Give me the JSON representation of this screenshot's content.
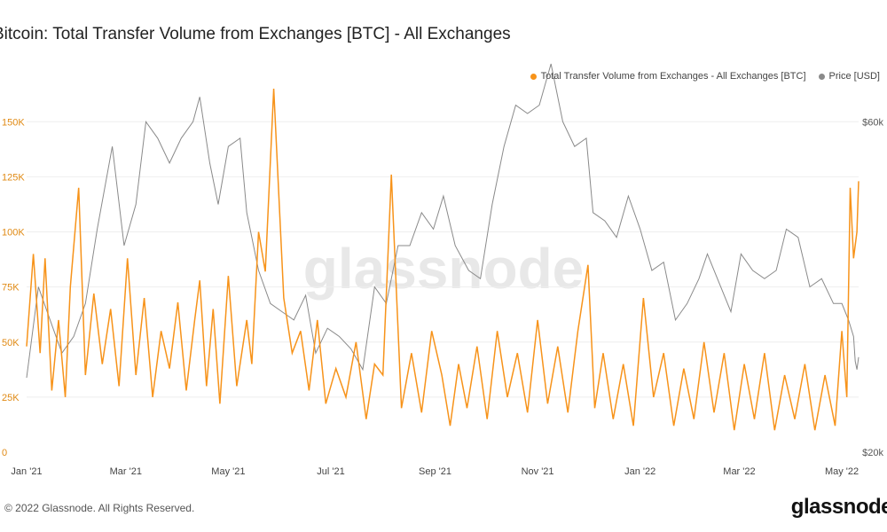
{
  "title": "Bitcoin: Total Transfer Volume from Exchanges [BTC] - All Exchanges",
  "footer": "© 2022 Glassnode. All Rights Reserved.",
  "brand": "glassnode",
  "watermark": "glassnode",
  "colors": {
    "volume": "#f7931a",
    "price": "#8a8a8a",
    "grid": "#eeeeee",
    "axis_left": "#e08a14",
    "axis_right": "#555555",
    "axis_bottom": "#444444"
  },
  "chart_data": {
    "type": "line",
    "title": "Bitcoin: Total Transfer Volume from Exchanges [BTC] - All Exchanges",
    "grid": true,
    "legend_position": "top-right",
    "x_ticks": [
      "Jan '21",
      "Mar '21",
      "May '21",
      "Jul '21",
      "Sep '21",
      "Nov '21",
      "Jan '22",
      "Mar '22",
      "May '22"
    ],
    "x_tick_dates": [
      "2021-01-01",
      "2021-03-01",
      "2021-05-01",
      "2021-07-01",
      "2021-09-01",
      "2021-11-01",
      "2022-01-01",
      "2022-03-01",
      "2022-05-01"
    ],
    "x_range": [
      "2021-01-01",
      "2022-05-11"
    ],
    "y_left": {
      "ticks": [
        "0",
        "25K",
        "50K",
        "75K",
        "100K",
        "125K",
        "150K"
      ],
      "tick_values": [
        0,
        25000,
        50000,
        75000,
        100000,
        125000,
        150000
      ],
      "range": [
        0,
        165000
      ]
    },
    "y_right": {
      "ticks": [
        "$20k",
        "$60k"
      ],
      "tick_values": [
        20000,
        60000
      ],
      "range": [
        20000,
        64000
      ],
      "scale": "linear"
    },
    "series": [
      {
        "name": "Total Transfer Volume from Exchanges - All Exchanges [BTC]",
        "axis": "left",
        "x": [
          "2021-01-01",
          "2021-01-05",
          "2021-01-09",
          "2021-01-12",
          "2021-01-16",
          "2021-01-20",
          "2021-01-24",
          "2021-01-27",
          "2021-02-01",
          "2021-02-05",
          "2021-02-10",
          "2021-02-15",
          "2021-02-20",
          "2021-02-25",
          "2021-03-02",
          "2021-03-07",
          "2021-03-12",
          "2021-03-17",
          "2021-03-22",
          "2021-03-27",
          "2021-04-01",
          "2021-04-06",
          "2021-04-11",
          "2021-04-14",
          "2021-04-18",
          "2021-04-22",
          "2021-04-26",
          "2021-05-01",
          "2021-05-06",
          "2021-05-12",
          "2021-05-15",
          "2021-05-19",
          "2021-05-23",
          "2021-05-28",
          "2021-06-03",
          "2021-06-08",
          "2021-06-13",
          "2021-06-18",
          "2021-06-23",
          "2021-06-28",
          "2021-07-04",
          "2021-07-10",
          "2021-07-16",
          "2021-07-22",
          "2021-07-27",
          "2021-08-01",
          "2021-08-06",
          "2021-08-12",
          "2021-08-18",
          "2021-08-24",
          "2021-08-30",
          "2021-09-05",
          "2021-09-10",
          "2021-09-15",
          "2021-09-20",
          "2021-09-26",
          "2021-10-02",
          "2021-10-08",
          "2021-10-14",
          "2021-10-20",
          "2021-10-26",
          "2021-11-01",
          "2021-11-07",
          "2021-11-13",
          "2021-11-19",
          "2021-11-25",
          "2021-12-01",
          "2021-12-05",
          "2021-12-10",
          "2021-12-16",
          "2021-12-22",
          "2021-12-28",
          "2022-01-03",
          "2022-01-09",
          "2022-01-15",
          "2022-01-21",
          "2022-01-27",
          "2022-02-02",
          "2022-02-08",
          "2022-02-14",
          "2022-02-20",
          "2022-02-26",
          "2022-03-04",
          "2022-03-10",
          "2022-03-16",
          "2022-03-22",
          "2022-03-28",
          "2022-04-03",
          "2022-04-09",
          "2022-04-15",
          "2022-04-21",
          "2022-04-27",
          "2022-05-01",
          "2022-05-04",
          "2022-05-06",
          "2022-05-08",
          "2022-05-10",
          "2022-05-11"
        ],
        "values": [
          48000,
          90000,
          45000,
          88000,
          28000,
          60000,
          25000,
          75000,
          120000,
          35000,
          72000,
          40000,
          65000,
          30000,
          88000,
          35000,
          70000,
          25000,
          55000,
          38000,
          68000,
          28000,
          60000,
          78000,
          30000,
          65000,
          22000,
          80000,
          30000,
          60000,
          40000,
          100000,
          82000,
          165000,
          70000,
          45000,
          55000,
          28000,
          60000,
          22000,
          38000,
          25000,
          50000,
          15000,
          40000,
          35000,
          126000,
          20000,
          45000,
          18000,
          55000,
          35000,
          12000,
          40000,
          20000,
          48000,
          15000,
          55000,
          25000,
          45000,
          18000,
          60000,
          22000,
          48000,
          18000,
          55000,
          85000,
          20000,
          45000,
          15000,
          40000,
          12000,
          70000,
          25000,
          45000,
          12000,
          38000,
          15000,
          50000,
          18000,
          45000,
          10000,
          40000,
          15000,
          45000,
          10000,
          35000,
          15000,
          40000,
          10000,
          35000,
          12000,
          55000,
          25000,
          120000,
          88000,
          100000,
          123000
        ]
      },
      {
        "name": "Price [USD]",
        "axis": "right",
        "x": [
          "2021-01-01",
          "2021-01-08",
          "2021-01-15",
          "2021-01-22",
          "2021-01-29",
          "2021-02-05",
          "2021-02-12",
          "2021-02-21",
          "2021-02-28",
          "2021-03-07",
          "2021-03-13",
          "2021-03-20",
          "2021-03-27",
          "2021-04-03",
          "2021-04-10",
          "2021-04-14",
          "2021-04-20",
          "2021-04-25",
          "2021-05-01",
          "2021-05-08",
          "2021-05-12",
          "2021-05-19",
          "2021-05-26",
          "2021-06-02",
          "2021-06-09",
          "2021-06-16",
          "2021-06-22",
          "2021-06-29",
          "2021-07-06",
          "2021-07-13",
          "2021-07-20",
          "2021-07-27",
          "2021-08-03",
          "2021-08-10",
          "2021-08-17",
          "2021-08-24",
          "2021-08-31",
          "2021-09-06",
          "2021-09-13",
          "2021-09-21",
          "2021-09-28",
          "2021-10-05",
          "2021-10-12",
          "2021-10-19",
          "2021-10-26",
          "2021-11-02",
          "2021-11-09",
          "2021-11-16",
          "2021-11-23",
          "2021-11-30",
          "2021-12-04",
          "2021-12-11",
          "2021-12-18",
          "2021-12-25",
          "2022-01-01",
          "2022-01-08",
          "2022-01-15",
          "2022-01-22",
          "2022-01-29",
          "2022-02-05",
          "2022-02-10",
          "2022-02-18",
          "2022-02-24",
          "2022-03-02",
          "2022-03-09",
          "2022-03-16",
          "2022-03-23",
          "2022-03-29",
          "2022-04-05",
          "2022-04-12",
          "2022-04-19",
          "2022-04-26",
          "2022-05-01",
          "2022-05-05",
          "2022-05-08",
          "2022-05-09",
          "2022-05-10",
          "2022-05-11"
        ],
        "values": [
          29000,
          40000,
          36000,
          32000,
          34000,
          38000,
          47000,
          57000,
          45000,
          50000,
          60000,
          58000,
          55000,
          58000,
          60000,
          63000,
          55000,
          50000,
          57000,
          58000,
          49000,
          42000,
          38000,
          37000,
          36000,
          39000,
          32000,
          35000,
          34000,
          32500,
          30000,
          40000,
          38000,
          45000,
          45000,
          49000,
          47000,
          51000,
          45000,
          42000,
          41000,
          50000,
          57000,
          62000,
          61000,
          62000,
          67000,
          60000,
          57000,
          58000,
          49000,
          48000,
          46000,
          51000,
          47000,
          42000,
          43000,
          36000,
          38000,
          41000,
          44000,
          40000,
          37000,
          44000,
          42000,
          41000,
          42000,
          47000,
          46000,
          40000,
          41000,
          38000,
          38000,
          36000,
          34000,
          31000,
          30000,
          31500
        ]
      }
    ]
  }
}
